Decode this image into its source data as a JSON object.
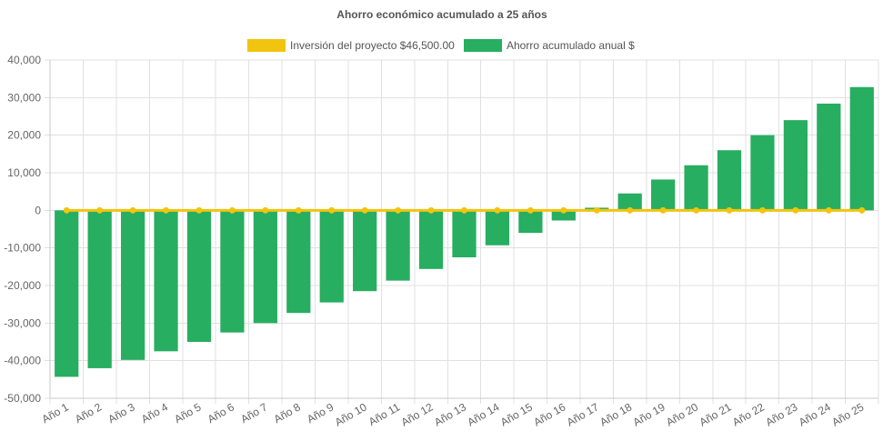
{
  "chart_data": {
    "type": "bar",
    "title": "Ahorro económico acumulado a 25 años",
    "xlabel": "",
    "ylabel": "",
    "ylim": [
      -50000,
      40000
    ],
    "y_ticks": [
      40000,
      30000,
      20000,
      10000,
      0,
      -10000,
      -20000,
      -30000,
      -40000,
      -50000
    ],
    "y_tick_labels": [
      "40,000",
      "30,000",
      "20,000",
      "10,000",
      "0",
      "-10,000",
      "-20,000",
      "-30,000",
      "-40,000",
      "-50,000"
    ],
    "grid": true,
    "legend_position": "top",
    "categories": [
      "Año 1",
      "Año 2",
      "Año 3",
      "Año 4",
      "Año 5",
      "Año 6",
      "Año 7",
      "Año 8",
      "Año 9",
      "Año 10",
      "Año 11",
      "Año 12",
      "Año 13",
      "Año 14",
      "Año 15",
      "Año 16",
      "Año 17",
      "Año 18",
      "Año 19",
      "Año 20",
      "Año 21",
      "Año 22",
      "Año 23",
      "Año 24",
      "Año 25"
    ],
    "series": [
      {
        "name": "Inversión del proyecto $46,500.00",
        "type": "line",
        "color": "#f1c40f",
        "values": [
          0,
          0,
          0,
          0,
          0,
          0,
          0,
          0,
          0,
          0,
          0,
          0,
          0,
          0,
          0,
          0,
          0,
          0,
          0,
          0,
          0,
          0,
          0,
          0,
          0
        ]
      },
      {
        "name": "Ahorro acumulado anual $",
        "type": "bar",
        "color": "#27ae60",
        "values": [
          -44300,
          -42000,
          -39800,
          -37500,
          -35000,
          -32500,
          -30000,
          -27300,
          -24500,
          -21500,
          -18700,
          -15600,
          -12500,
          -9300,
          -6000,
          -2700,
          700,
          4500,
          8200,
          12000,
          16000,
          20000,
          24000,
          28400,
          32800
        ]
      }
    ]
  }
}
